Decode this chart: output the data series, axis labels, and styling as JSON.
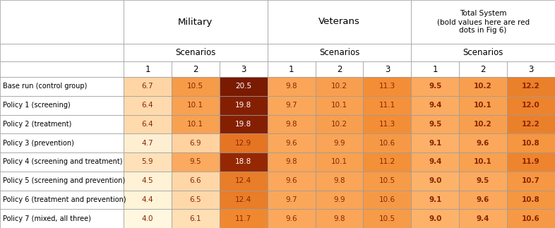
{
  "rows": [
    "Base run (control group)",
    "Policy 1 (screening)",
    "Policy 2 (treatment)",
    "Policy 3 (prevention)",
    "Policy 4 (screening and treatment)",
    "Policy 5 (screening and prevention)",
    "Policy 6 (treatment and prevention)",
    "Policy 7 (mixed, all three)"
  ],
  "military_data": [
    [
      6.7,
      10.5,
      20.5
    ],
    [
      6.4,
      10.1,
      19.8
    ],
    [
      6.4,
      10.1,
      19.8
    ],
    [
      4.7,
      6.9,
      12.9
    ],
    [
      5.9,
      9.5,
      18.8
    ],
    [
      4.5,
      6.6,
      12.4
    ],
    [
      4.4,
      6.5,
      12.4
    ],
    [
      4.0,
      6.1,
      11.7
    ]
  ],
  "veterans_data": [
    [
      9.8,
      10.2,
      11.3
    ],
    [
      9.7,
      10.1,
      11.1
    ],
    [
      9.8,
      10.2,
      11.3
    ],
    [
      9.6,
      9.9,
      10.6
    ],
    [
      9.8,
      10.1,
      11.2
    ],
    [
      9.6,
      9.8,
      10.5
    ],
    [
      9.7,
      9.9,
      10.6
    ],
    [
      9.6,
      9.8,
      10.5
    ]
  ],
  "total_data": [
    [
      9.5,
      10.2,
      12.2
    ],
    [
      9.4,
      10.1,
      12.0
    ],
    [
      9.5,
      10.2,
      12.2
    ],
    [
      9.1,
      9.6,
      10.8
    ],
    [
      9.4,
      10.1,
      11.9
    ],
    [
      9.0,
      9.5,
      10.7
    ],
    [
      9.1,
      9.6,
      10.8
    ],
    [
      9.0,
      9.4,
      10.6
    ]
  ],
  "val_min": 4.0,
  "val_max": 20.5,
  "color_stops": [
    [
      0.0,
      [
        1.0,
        0.97,
        0.88
      ]
    ],
    [
      0.12,
      [
        1.0,
        0.88,
        0.72
      ]
    ],
    [
      0.28,
      [
        1.0,
        0.72,
        0.45
      ]
    ],
    [
      0.45,
      [
        0.95,
        0.55,
        0.2
      ]
    ],
    [
      0.62,
      [
        0.85,
        0.38,
        0.08
      ]
    ],
    [
      0.78,
      [
        0.7,
        0.22,
        0.02
      ]
    ],
    [
      1.0,
      [
        0.48,
        0.1,
        0.0
      ]
    ]
  ],
  "border_color": "#999999",
  "header_bg": "#FFFFFF",
  "text_dark": "#8B2500",
  "text_white": "#FFFFFF",
  "white_threshold": 0.72
}
